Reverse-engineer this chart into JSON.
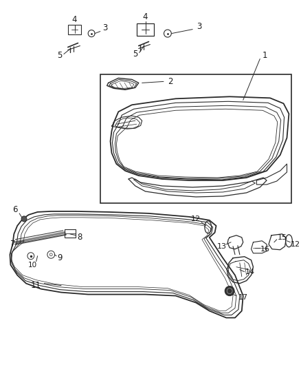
{
  "bg_color": "#ffffff",
  "line_color": "#2a2a2a",
  "label_color": "#1a1a1a",
  "fig_width": 4.38,
  "fig_height": 5.33,
  "dpi": 100,
  "font_size": 8.5
}
